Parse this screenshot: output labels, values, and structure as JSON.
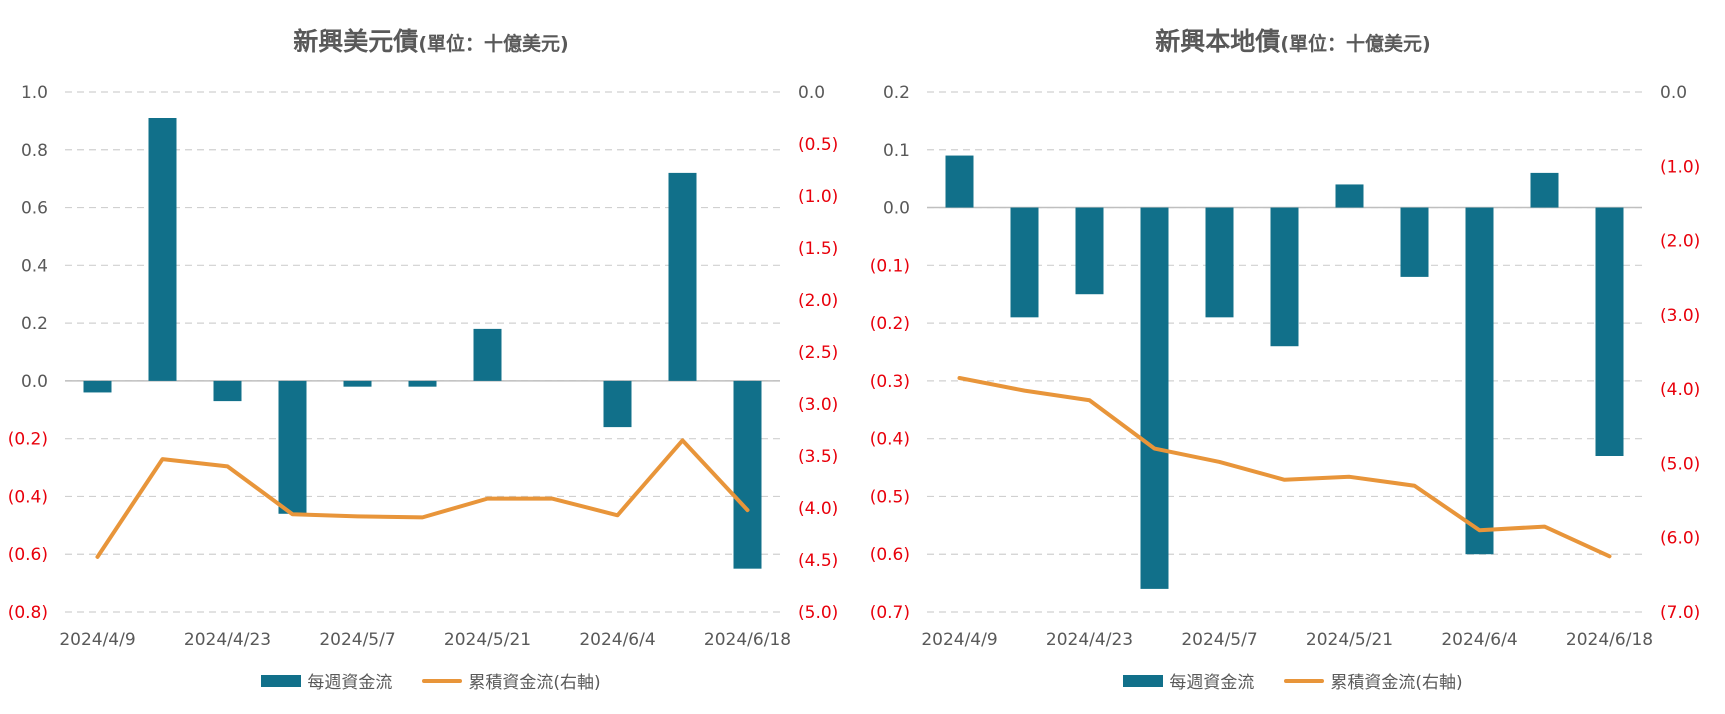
{
  "colors": {
    "bar": "#11708A",
    "line": "#E8953A",
    "negative_tick": "#E8000B",
    "axis_text": "#595959",
    "grid": "#D0D0D0"
  },
  "chart_data": [
    {
      "type": "bar",
      "title": "新興美元債",
      "subtitle": "(單位：十億美元)",
      "x_tick_labels": [
        "2024/4/9",
        "2024/4/23",
        "2024/5/7",
        "2024/5/21",
        "2024/6/4",
        "2024/6/18"
      ],
      "left_ticks": [
        "1.0",
        "0.8",
        "0.6",
        "0.4",
        "0.2",
        "0.0",
        "(0.2)",
        "(0.4)",
        "(0.6)",
        "(0.8)"
      ],
      "right_ticks": [
        "0.0",
        "(0.5)",
        "(1.0)",
        "(1.5)",
        "(2.0)",
        "(2.5)",
        "(3.0)",
        "(3.5)",
        "(4.0)",
        "(4.5)",
        "(5.0)"
      ],
      "ylim": [
        -0.8,
        1.0
      ],
      "y2lim": [
        -5.0,
        0.0
      ],
      "grid": true,
      "legend_position": "bottom",
      "series": [
        {
          "name": "每週資金流",
          "axis": "left",
          "type": "bar",
          "values": [
            -0.04,
            0.91,
            -0.07,
            -0.46,
            -0.02,
            -0.02,
            0.18,
            0.0,
            -0.16,
            0.72,
            -0.65
          ]
        },
        {
          "name": "累積資金流(右軸)",
          "axis": "right",
          "type": "line",
          "values": [
            -4.47,
            -3.53,
            -3.6,
            -4.06,
            -4.08,
            -4.09,
            -3.91,
            -3.91,
            -4.07,
            -3.35,
            -4.02
          ]
        }
      ]
    },
    {
      "type": "bar",
      "title": "新興本地債",
      "subtitle": "(單位：十億美元)",
      "x_tick_labels": [
        "2024/4/9",
        "2024/4/23",
        "2024/5/7",
        "2024/5/21",
        "2024/6/4",
        "2024/6/18"
      ],
      "left_ticks": [
        "0.2",
        "0.1",
        "0.0",
        "(0.1)",
        "(0.2)",
        "(0.3)",
        "(0.4)",
        "(0.5)",
        "(0.6)",
        "(0.7)"
      ],
      "right_ticks": [
        "0.0",
        "(1.0)",
        "(2.0)",
        "(3.0)",
        "(4.0)",
        "(5.0)",
        "(6.0)",
        "(7.0)"
      ],
      "ylim": [
        -0.7,
        0.2
      ],
      "y2lim": [
        -7.0,
        0.0
      ],
      "grid": true,
      "legend_position": "bottom",
      "series": [
        {
          "name": "每週資金流",
          "axis": "left",
          "type": "bar",
          "values": [
            0.09,
            -0.19,
            -0.15,
            -0.66,
            -0.19,
            -0.24,
            0.04,
            -0.12,
            -0.6,
            0.06,
            -0.43
          ]
        },
        {
          "name": "累積資金流(右軸)",
          "axis": "right",
          "type": "line",
          "values": [
            -3.85,
            -4.02,
            -4.15,
            -4.8,
            -4.98,
            -5.22,
            -5.18,
            -5.3,
            -5.9,
            -5.85,
            -6.25
          ]
        }
      ]
    }
  ]
}
